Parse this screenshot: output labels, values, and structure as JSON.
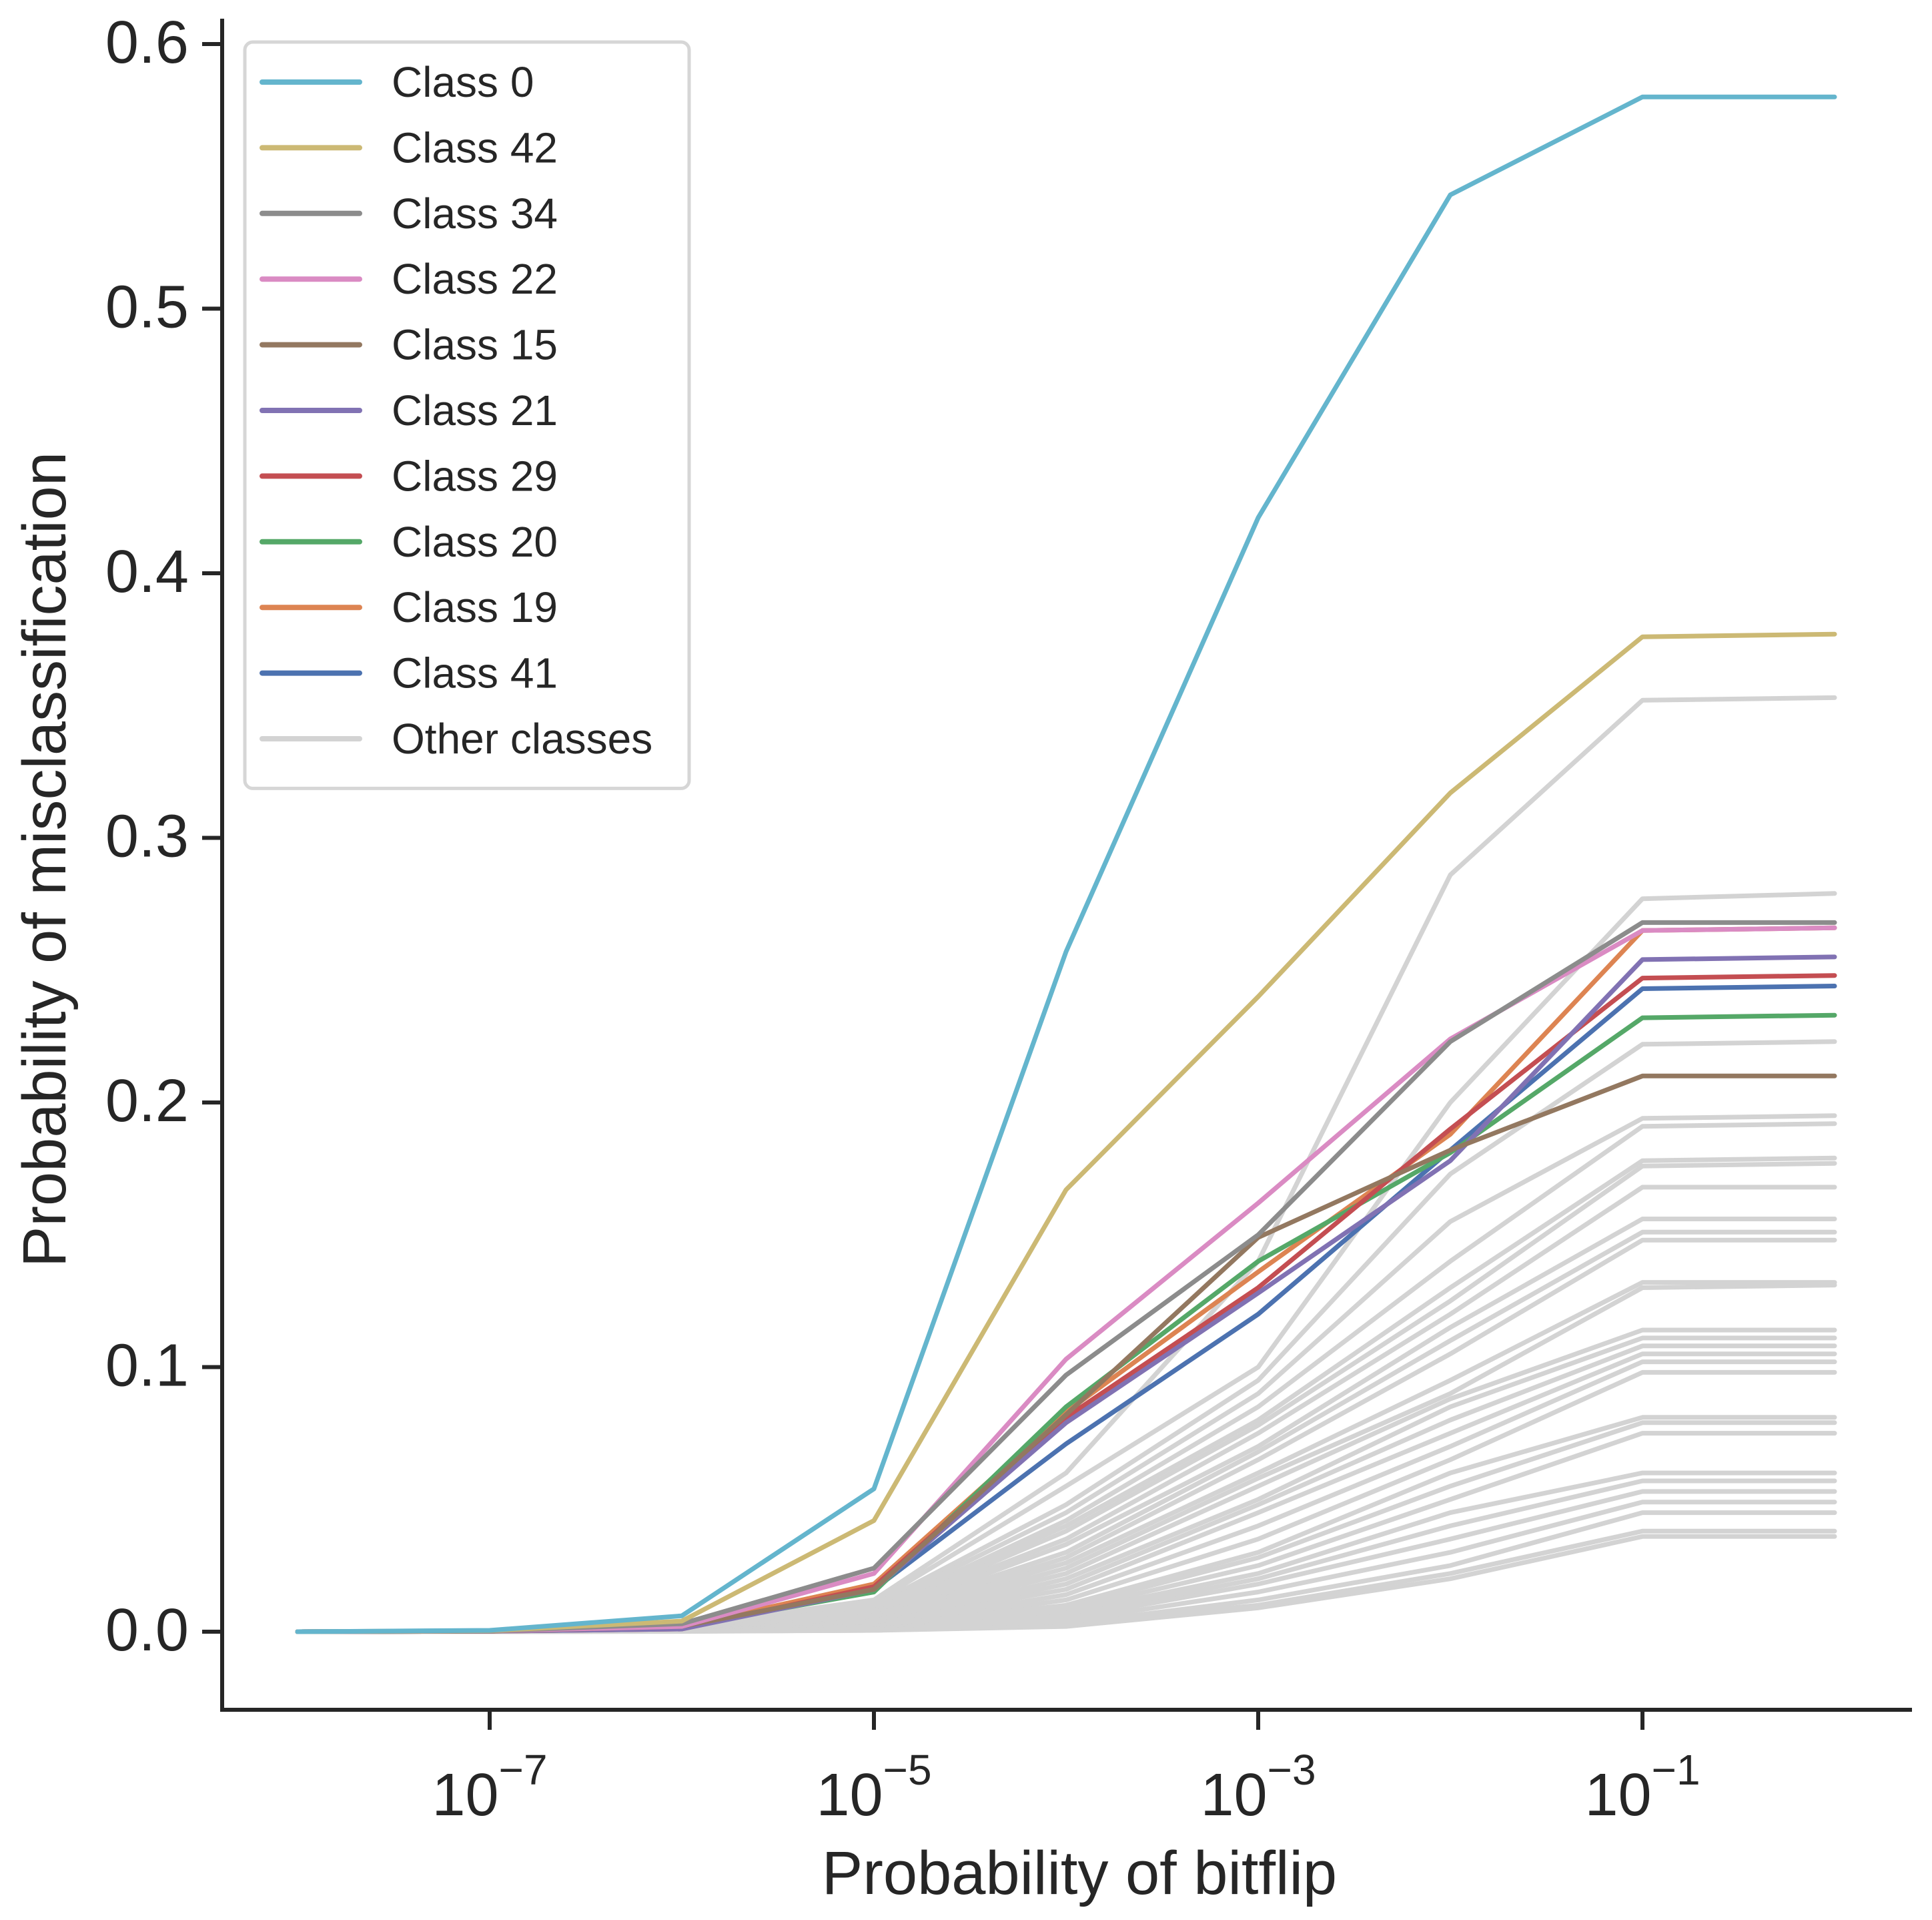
{
  "chart_data": {
    "type": "line",
    "title": "",
    "xlabel": "Probability of bitflip",
    "ylabel": "Probability of misclassification",
    "x_scale": "log",
    "x": [
      1e-08,
      1e-07,
      1e-06,
      1e-05,
      0.0001,
      0.001,
      0.01,
      0.1,
      1
    ],
    "xlim": [
      1e-08,
      1
    ],
    "ylim": [
      -0.03,
      0.61
    ],
    "x_ticks": [
      {
        "value": 1e-07,
        "base": "10",
        "exp": "−7"
      },
      {
        "value": 1e-05,
        "base": "10",
        "exp": "−5"
      },
      {
        "value": 0.001,
        "base": "10",
        "exp": "−3"
      },
      {
        "value": 0.1,
        "base": "10",
        "exp": "−1"
      }
    ],
    "y_ticks": [
      {
        "value": 0.0,
        "label": "0.0"
      },
      {
        "value": 0.1,
        "label": "0.1"
      },
      {
        "value": 0.2,
        "label": "0.2"
      },
      {
        "value": 0.3,
        "label": "0.3"
      },
      {
        "value": 0.4,
        "label": "0.4"
      },
      {
        "value": 0.5,
        "label": "0.5"
      },
      {
        "value": 0.6,
        "label": "0.6"
      }
    ],
    "grid": false,
    "legend": "upper-left",
    "series": [
      {
        "name": "Class 0",
        "color": "#64b5cd",
        "values": [
          0.0,
          0.0005,
          0.006,
          0.054,
          0.257,
          0.421,
          0.543,
          0.58,
          0.58
        ]
      },
      {
        "name": "Class 42",
        "color": "#ccb974",
        "values": [
          0.0,
          0.0004,
          0.004,
          0.042,
          0.167,
          0.24,
          0.317,
          0.376,
          0.377
        ]
      },
      {
        "name": "Class 34",
        "color": "#8c8c8c",
        "values": [
          0.0,
          0.0003,
          0.003,
          0.024,
          0.097,
          0.15,
          0.223,
          0.268,
          0.268
        ]
      },
      {
        "name": "Class 22",
        "color": "#da8bc3",
        "values": [
          0.0,
          0.0003,
          0.002,
          0.022,
          0.103,
          0.162,
          0.224,
          0.265,
          0.266
        ]
      },
      {
        "name": "Class 15",
        "color": "#937860",
        "values": [
          0.0,
          0.0002,
          0.002,
          0.016,
          0.082,
          0.149,
          0.182,
          0.21,
          0.21
        ]
      },
      {
        "name": "Class 21",
        "color": "#8172b3",
        "values": [
          0.0,
          0.0002,
          0.001,
          0.016,
          0.079,
          0.128,
          0.178,
          0.254,
          0.255
        ]
      },
      {
        "name": "Class 29",
        "color": "#c44e52",
        "values": [
          0.0,
          0.0002,
          0.001,
          0.017,
          0.081,
          0.13,
          0.19,
          0.247,
          0.248
        ]
      },
      {
        "name": "Class 20",
        "color": "#55a868",
        "values": [
          0.0,
          0.0002,
          0.002,
          0.015,
          0.085,
          0.14,
          0.181,
          0.232,
          0.233
        ]
      },
      {
        "name": "Class 19",
        "color": "#dd8452",
        "values": [
          0.0,
          0.0002,
          0.002,
          0.018,
          0.083,
          0.136,
          0.188,
          0.265,
          0.266
        ]
      },
      {
        "name": "Class 41",
        "color": "#4c72b0",
        "values": [
          0.0,
          0.0002,
          0.002,
          0.016,
          0.071,
          0.12,
          0.182,
          0.243,
          0.244
        ]
      }
    ],
    "other_classes": {
      "name": "Other classes",
      "color": "#d3d3d3",
      "series": [
        [
          0.0,
          0.0002,
          0.002,
          0.012,
          0.06,
          0.14,
          0.286,
          0.352,
          0.353
        ],
        [
          0.0,
          0.0002,
          0.002,
          0.011,
          0.055,
          0.1,
          0.2,
          0.277,
          0.279
        ],
        [
          0.0,
          0.0001,
          0.001,
          0.01,
          0.048,
          0.095,
          0.173,
          0.222,
          0.223
        ],
        [
          0.0,
          0.0001,
          0.001,
          0.009,
          0.045,
          0.09,
          0.155,
          0.194,
          0.195
        ],
        [
          0.0,
          0.0001,
          0.001,
          0.008,
          0.042,
          0.085,
          0.14,
          0.191,
          0.192
        ],
        [
          0.0,
          0.0001,
          0.001,
          0.008,
          0.04,
          0.08,
          0.13,
          0.178,
          0.179
        ],
        [
          0.0,
          0.0001,
          0.001,
          0.007,
          0.038,
          0.078,
          0.125,
          0.176,
          0.177
        ],
        [
          0.0,
          0.0001,
          0.001,
          0.007,
          0.035,
          0.075,
          0.12,
          0.168,
          0.168
        ],
        [
          0.0,
          0.0001,
          0.001,
          0.006,
          0.033,
          0.07,
          0.115,
          0.156,
          0.156
        ],
        [
          0.0,
          0.0001,
          0.001,
          0.006,
          0.03,
          0.068,
          0.11,
          0.151,
          0.151
        ],
        [
          0.0,
          0.0001,
          0.001,
          0.005,
          0.028,
          0.065,
          0.105,
          0.148,
          0.148
        ],
        [
          0.0,
          0.0001,
          0.001,
          0.005,
          0.026,
          0.06,
          0.095,
          0.132,
          0.132
        ],
        [
          0.0,
          0.0001,
          0.0008,
          0.004,
          0.024,
          0.058,
          0.09,
          0.13,
          0.131
        ],
        [
          0.0,
          0.0001,
          0.0008,
          0.004,
          0.022,
          0.055,
          0.088,
          0.114,
          0.114
        ],
        [
          0.0,
          0.0001,
          0.0007,
          0.003,
          0.02,
          0.05,
          0.085,
          0.111,
          0.111
        ],
        [
          0.0,
          0.0001,
          0.0007,
          0.003,
          0.018,
          0.048,
          0.08,
          0.108,
          0.108
        ],
        [
          0.0,
          0.0001,
          0.0006,
          0.003,
          0.016,
          0.045,
          0.075,
          0.105,
          0.105
        ],
        [
          0.0,
          0.0001,
          0.0006,
          0.002,
          0.014,
          0.04,
          0.07,
          0.102,
          0.102
        ],
        [
          0.0,
          0.0001,
          0.0005,
          0.002,
          0.012,
          0.035,
          0.065,
          0.098,
          0.098
        ],
        [
          0.0,
          0.0,
          0.0005,
          0.002,
          0.01,
          0.03,
          0.06,
          0.081,
          0.081
        ],
        [
          0.0,
          0.0,
          0.0004,
          0.002,
          0.009,
          0.028,
          0.055,
          0.079,
          0.079
        ],
        [
          0.0,
          0.0,
          0.0004,
          0.001,
          0.008,
          0.025,
          0.05,
          0.075,
          0.075
        ],
        [
          0.0,
          0.0,
          0.0003,
          0.001,
          0.007,
          0.022,
          0.045,
          0.06,
          0.06
        ],
        [
          0.0,
          0.0,
          0.0003,
          0.001,
          0.006,
          0.02,
          0.04,
          0.057,
          0.057
        ],
        [
          0.0,
          0.0,
          0.0003,
          0.001,
          0.005,
          0.018,
          0.035,
          0.053,
          0.053
        ],
        [
          0.0,
          0.0,
          0.0002,
          0.001,
          0.004,
          0.015,
          0.03,
          0.049,
          0.049
        ],
        [
          0.0,
          0.0,
          0.0002,
          0.0005,
          0.003,
          0.012,
          0.025,
          0.045,
          0.045
        ],
        [
          0.0,
          0.0,
          0.0002,
          0.0005,
          0.003,
          0.01,
          0.022,
          0.038,
          0.038
        ],
        [
          0.0,
          0.0,
          0.0001,
          0.0005,
          0.002,
          0.009,
          0.02,
          0.036,
          0.036
        ]
      ]
    }
  }
}
